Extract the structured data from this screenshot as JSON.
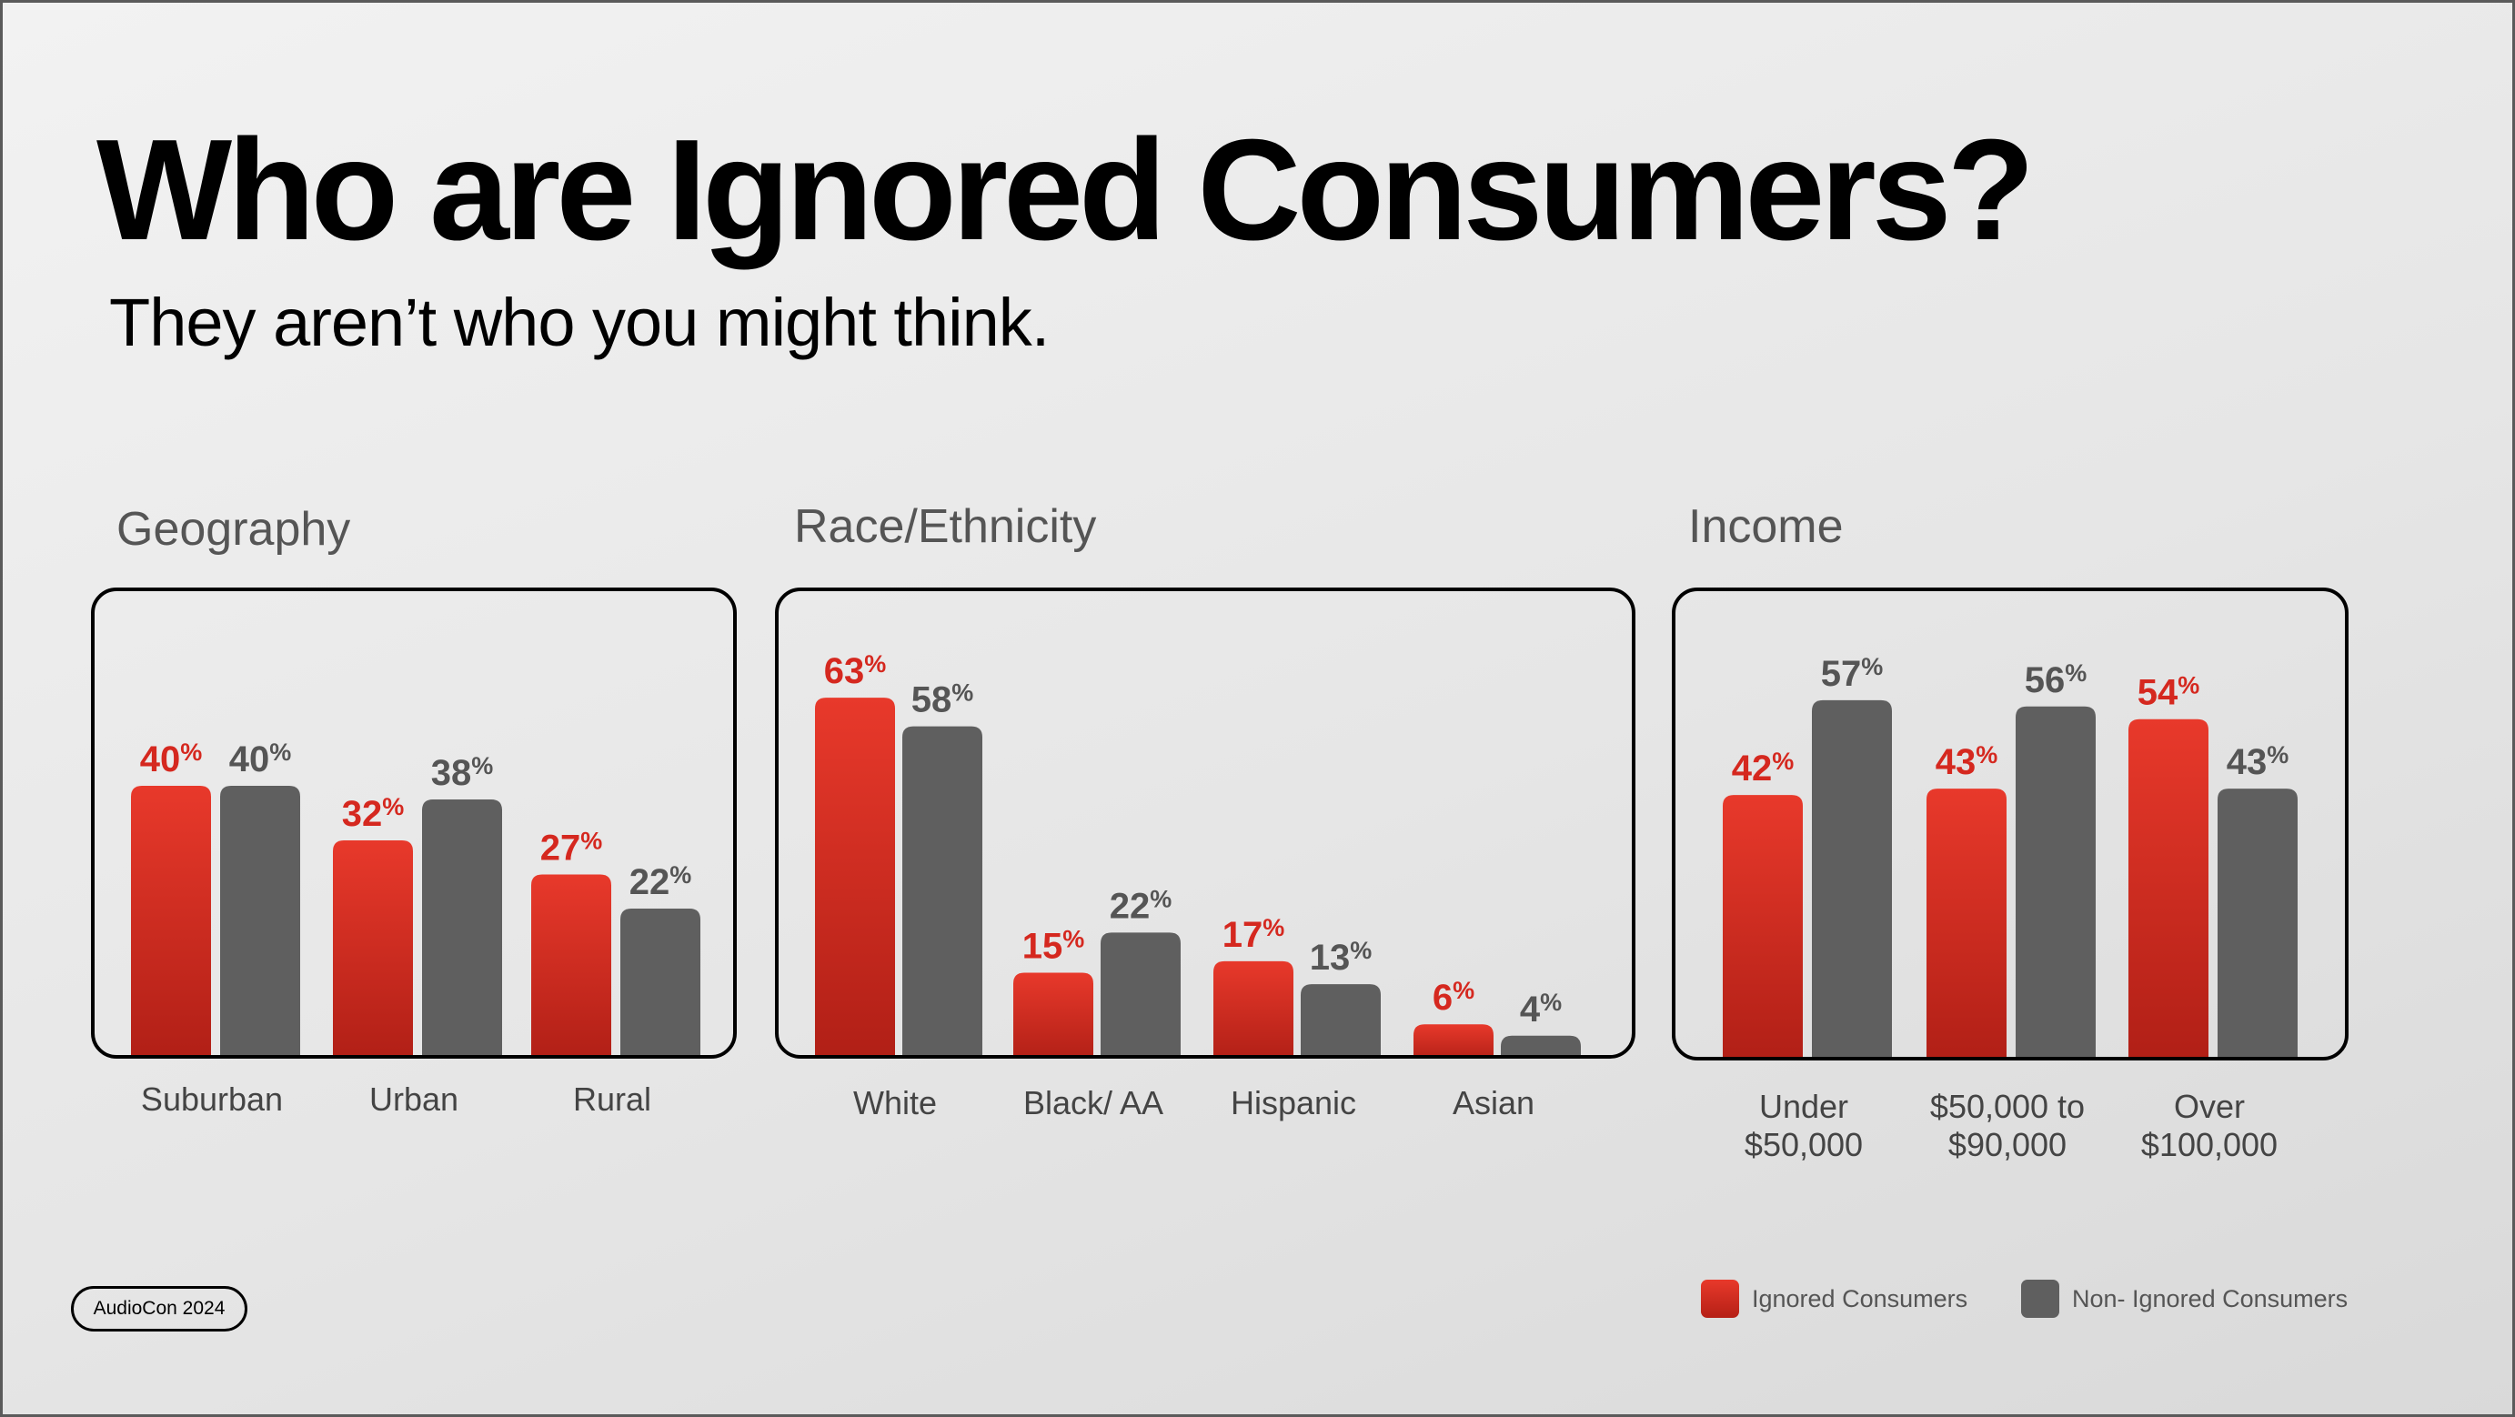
{
  "title": "Who are Ignored Consumers?",
  "subtitle": "They aren’t who you might think.",
  "footer": {
    "badge": "AudioCon 2024"
  },
  "legend": [
    {
      "label": "Ignored Consumers",
      "color": "#e03024"
    },
    {
      "label": "Non- Ignored Consumers",
      "color": "#5f5f5f"
    }
  ],
  "chart_data": [
    {
      "type": "bar",
      "title": "Geography",
      "categories": [
        "Suburban",
        "Urban",
        "Rural"
      ],
      "series": [
        {
          "name": "Ignored Consumers",
          "values": [
            40,
            32,
            27
          ]
        },
        {
          "name": "Non- Ignored Consumers",
          "values": [
            40,
            38,
            22
          ]
        }
      ],
      "unit": "%",
      "ylim": [
        0,
        100
      ]
    },
    {
      "type": "bar",
      "title": "Race/Ethnicity",
      "categories": [
        "White",
        "Black/ AA",
        "Hispanic",
        "Asian"
      ],
      "series": [
        {
          "name": "Ignored Consumers",
          "values": [
            63,
            15,
            17,
            6
          ]
        },
        {
          "name": "Non- Ignored Consumers",
          "values": [
            58,
            22,
            13,
            4
          ]
        }
      ],
      "unit": "%",
      "ylim": [
        0,
        100
      ]
    },
    {
      "type": "bar",
      "title": "Income",
      "categories": [
        "Under\n$50,000",
        "$50,000 to\n$90,000",
        "Over\n$100,000"
      ],
      "series": [
        {
          "name": "Ignored Consumers",
          "values": [
            42,
            43,
            54
          ]
        },
        {
          "name": "Non- Ignored Consumers",
          "values": [
            57,
            56,
            43
          ]
        }
      ],
      "unit": "%",
      "ylim": [
        0,
        100
      ]
    }
  ]
}
